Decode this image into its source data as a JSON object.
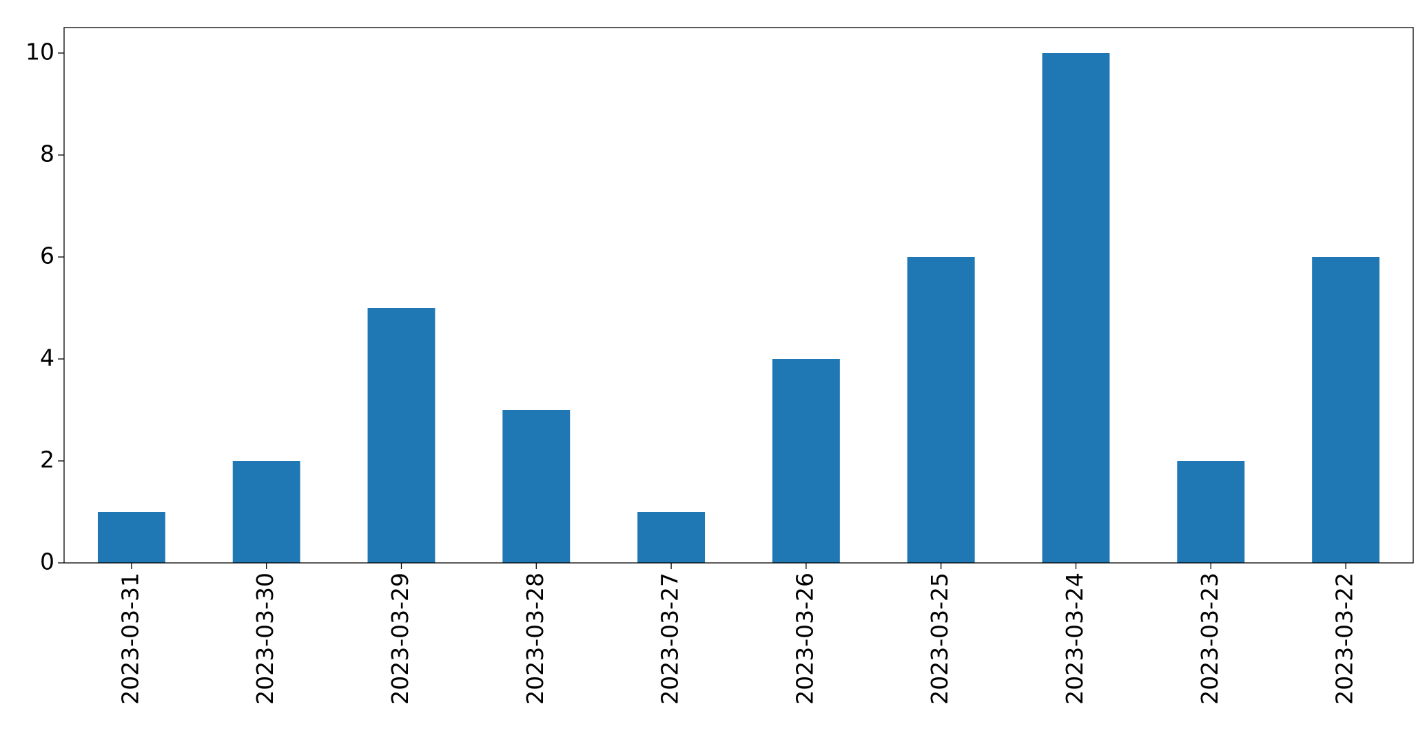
{
  "chart_data": {
    "type": "bar",
    "categories": [
      "2023-03-31",
      "2023-03-30",
      "2023-03-29",
      "2023-03-28",
      "2023-03-27",
      "2023-03-26",
      "2023-03-25",
      "2023-03-24",
      "2023-03-23",
      "2023-03-22"
    ],
    "values": [
      1,
      2,
      5,
      3,
      1,
      4,
      6,
      10,
      2,
      6
    ],
    "color": "#1f77b4",
    "ylim": [
      0,
      10.5
    ],
    "yticks": [
      0,
      2,
      4,
      6,
      8,
      10
    ],
    "grid": false
  }
}
